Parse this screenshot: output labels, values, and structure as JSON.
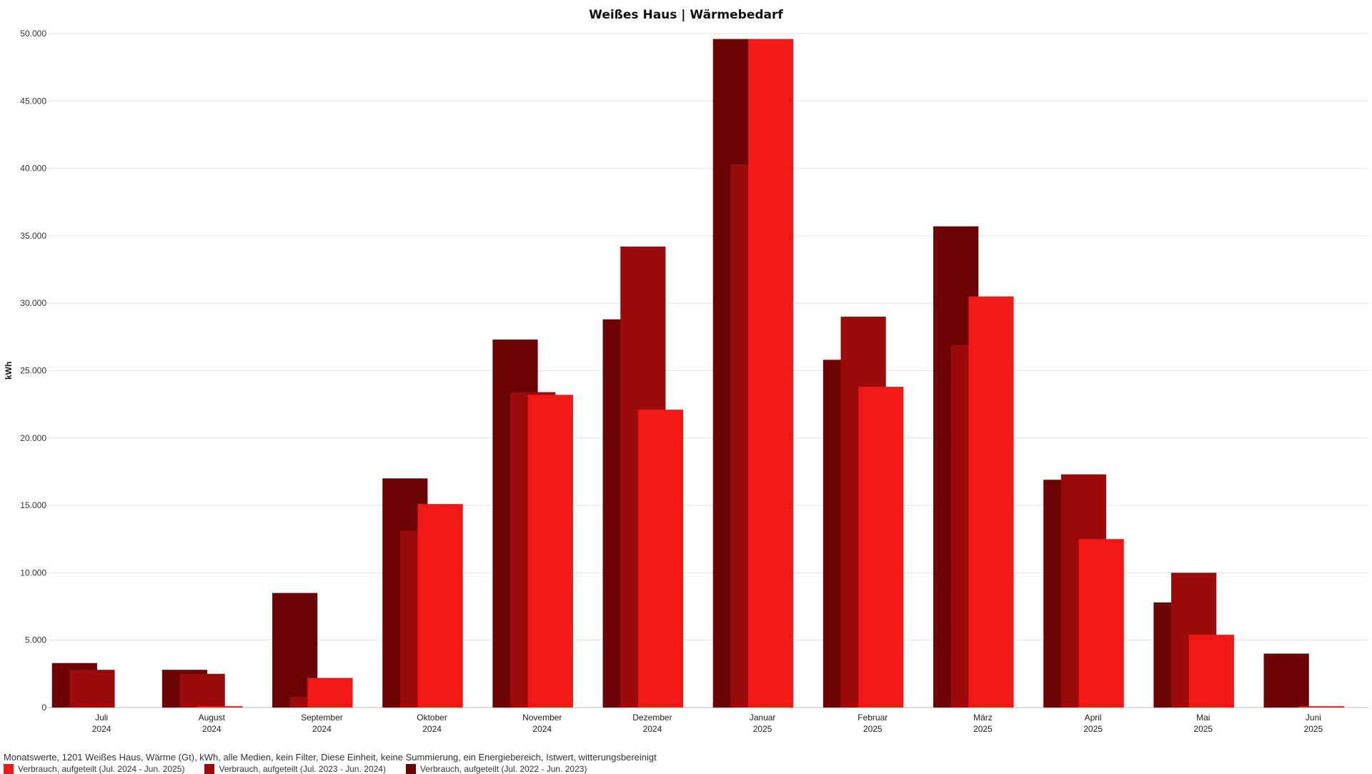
{
  "chart_data": {
    "type": "bar",
    "title": "Weißes Haus | Wärmebedarf",
    "ylabel": "kWh",
    "xlabel": "",
    "ylim": [
      0,
      50000
    ],
    "yticks": [
      0,
      5000,
      10000,
      15000,
      20000,
      25000,
      30000,
      35000,
      40000,
      45000,
      50000
    ],
    "ytick_labels": [
      "0",
      "5.000",
      "10.000",
      "15.000",
      "20.000",
      "25.000",
      "30.000",
      "35.000",
      "40.000",
      "45.000",
      "50.000"
    ],
    "grid": true,
    "categories": [
      {
        "month": "Juli",
        "year": "2024"
      },
      {
        "month": "August",
        "year": "2024"
      },
      {
        "month": "September",
        "year": "2024"
      },
      {
        "month": "Oktober",
        "year": "2024"
      },
      {
        "month": "November",
        "year": "2024"
      },
      {
        "month": "Dezember",
        "year": "2024"
      },
      {
        "month": "Januar",
        "year": "2025"
      },
      {
        "month": "Februar",
        "year": "2025"
      },
      {
        "month": "März",
        "year": "2025"
      },
      {
        "month": "April",
        "year": "2025"
      },
      {
        "month": "Mai",
        "year": "2025"
      },
      {
        "month": "Juni",
        "year": "2025"
      }
    ],
    "series": [
      {
        "name": "Verbrauch, aufgeteilt (Jul. 2022 - Jun. 2023)",
        "color": "#6b0505",
        "values": [
          3300,
          2800,
          8500,
          17000,
          27300,
          28800,
          49600,
          25800,
          35700,
          16900,
          7800,
          4000
        ]
      },
      {
        "name": "Verbrauch, aufgeteilt (Jul. 2023 - Jun. 2024)",
        "color": "#9b0b0b",
        "values": [
          2800,
          2500,
          800,
          13100,
          23400,
          34200,
          40300,
          29000,
          26900,
          17300,
          10000,
          0
        ]
      },
      {
        "name": "Verbrauch, aufgeteilt (Jul. 2024 - Jun. 2025)",
        "color": "#f21818",
        "values": [
          0,
          100,
          2200,
          15100,
          23200,
          22100,
          49600,
          23800,
          30500,
          12500,
          5400,
          100
        ]
      }
    ],
    "legend_order": [
      2,
      1,
      0
    ],
    "legend_position": "bottom-left"
  },
  "footer": {
    "description": "Monatswerte, 1201 Weißes Haus, Wärme (Gt), kWh, alle Medien, kein Filter, Diese Einheit, keine Summierung, ein Energiebereich, Istwert, witterungsbereinigt"
  }
}
